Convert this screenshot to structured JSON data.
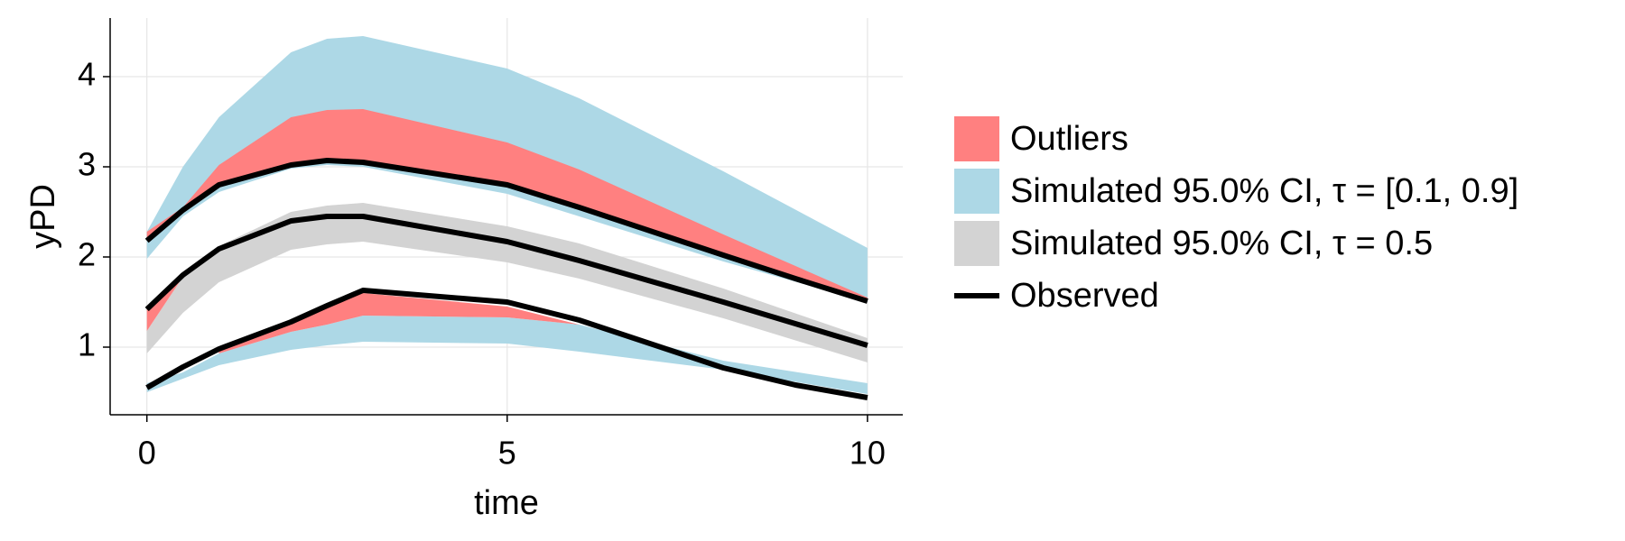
{
  "chart_data": {
    "type": "vpc",
    "xlabel": "time",
    "ylabel": "yPD",
    "xlim": [
      -0.51,
      10.49
    ],
    "ylim": [
      0.25,
      4.65
    ],
    "xticks": [
      0,
      5,
      10
    ],
    "yticks": [
      1,
      2,
      3,
      4
    ],
    "grid": true,
    "legend": "right",
    "bands": [
      {
        "name": "Simulated 95.0% CI, τ = [0.1, 0.9]",
        "color": "#add8e6",
        "parts": [
          {
            "x": [
              0,
              0.5,
              1,
              2,
              2.5,
              3,
              5,
              6,
              8,
              10
            ],
            "lower": [
              1.98,
              2.45,
              2.72,
              2.98,
              3.02,
              3.0,
              2.7,
              2.45,
              1.95,
              1.5
            ],
            "upper": [
              2.28,
              3.0,
              3.55,
              4.27,
              4.42,
              4.45,
              4.09,
              3.76,
              2.95,
              2.1
            ]
          },
          {
            "x": [
              0,
              0.5,
              1,
              2,
              2.5,
              3,
              5,
              6,
              8,
              10
            ],
            "lower": [
              0.5,
              0.65,
              0.8,
              0.97,
              1.02,
              1.06,
              1.04,
              0.95,
              0.75,
              0.48
            ],
            "upper": [
              0.6,
              0.72,
              0.93,
              1.17,
              1.25,
              1.35,
              1.33,
              1.25,
              0.85,
              0.6
            ]
          }
        ]
      },
      {
        "name": "Simulated 95.0% CI, τ = 0.5",
        "color": "#d3d3d3",
        "parts": [
          {
            "x": [
              0,
              0.5,
              1,
              2,
              2.5,
              3,
              5,
              6,
              8,
              10
            ],
            "lower": [
              0.93,
              1.38,
              1.72,
              2.08,
              2.14,
              2.17,
              1.94,
              1.76,
              1.32,
              0.83
            ],
            "upper": [
              1.18,
              1.78,
              2.12,
              2.5,
              2.57,
              2.6,
              2.34,
              2.15,
              1.65,
              1.1
            ]
          }
        ]
      },
      {
        "name": "Outliers",
        "color": "#ff8080",
        "parts": [
          {
            "x": [
              0,
              0.5,
              1,
              2,
              2.5,
              3,
              5,
              6,
              8,
              10
            ],
            "lower": [
              2.18,
              2.52,
              2.8,
              3.02,
              3.07,
              3.05,
              2.8,
              2.55,
              2.02,
              1.51
            ],
            "upper": [
              2.28,
              2.55,
              3.02,
              3.55,
              3.63,
              3.64,
              3.27,
              2.97,
              2.25,
              1.55
            ]
          },
          {
            "x": [
              0,
              0.5
            ],
            "lower": [
              1.18,
              1.78
            ],
            "upper": [
              1.42,
              1.8
            ]
          },
          {
            "x": [
              1,
              2,
              2.5,
              3,
              5,
              6
            ],
            "lower": [
              0.93,
              1.17,
              1.25,
              1.35,
              1.33,
              1.25
            ],
            "upper": [
              0.98,
              1.28,
              1.46,
              1.6,
              1.45,
              1.25
            ]
          }
        ]
      }
    ],
    "observed": {
      "name": "Observed",
      "color": "#000000",
      "x": [
        0,
        0.5,
        1,
        2,
        2.5,
        3,
        5,
        6,
        8,
        9,
        10
      ],
      "series": [
        [
          2.18,
          2.52,
          2.8,
          3.02,
          3.07,
          3.05,
          2.8,
          2.55,
          2.02,
          1.76,
          1.51
        ],
        [
          1.42,
          1.8,
          2.09,
          2.4,
          2.45,
          2.45,
          2.17,
          1.96,
          1.5,
          1.26,
          1.02
        ],
        [
          0.55,
          0.78,
          0.98,
          1.28,
          1.46,
          1.63,
          1.5,
          1.3,
          0.77,
          0.58,
          0.44
        ]
      ]
    },
    "legend_order": [
      "bands.2",
      "bands.0",
      "bands.1",
      "observed"
    ]
  }
}
